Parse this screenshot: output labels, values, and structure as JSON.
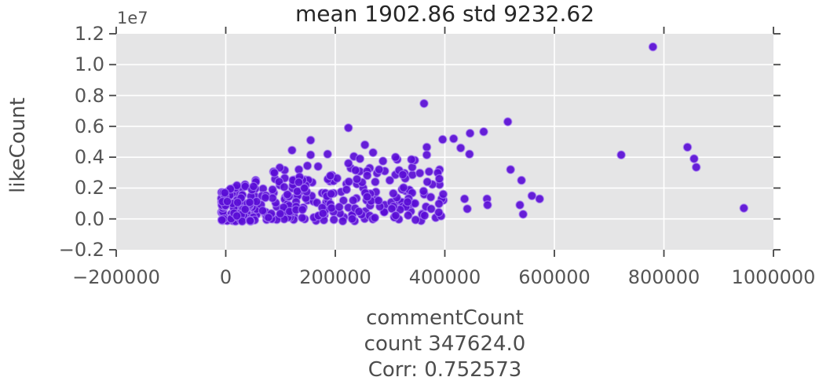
{
  "chart_data": {
    "type": "scatter",
    "title": "mean 1902.86 std 9232.62",
    "ylabel": "likeCount",
    "y_offset_text": "1e7",
    "xlabel_lines": [
      "commentCount",
      "count 347624.0",
      "Corr: 0.752573"
    ],
    "xlim": [
      -200000,
      1000000
    ],
    "ylim": [
      -2000000,
      12000000
    ],
    "grid": true,
    "legend": "none",
    "x_ticks": {
      "values": [
        -200000,
        0,
        200000,
        400000,
        600000,
        800000,
        1000000
      ],
      "labels": [
        "−200000",
        "0",
        "200000",
        "400000",
        "600000",
        "800000",
        "1000000"
      ]
    },
    "y_ticks": {
      "values": [
        12000000,
        10000000,
        8000000,
        6000000,
        4000000,
        2000000,
        0,
        -2000000
      ],
      "labels": [
        "1.2",
        "1.0",
        "0.8",
        "0.6",
        "0.4",
        "0.2",
        "0.0",
        "−0.2"
      ]
    },
    "colors": {
      "point": "#5A0DD6",
      "point_edge": "rgba(170,130,245,0.65)",
      "plot_bg": "#E5E5E6",
      "grid_line": "#FFFFFF",
      "tick": "#444444",
      "title_text": "#262626",
      "label_text": "#4D4D4D",
      "tick_text": "#555555"
    },
    "marker": {
      "radius": 5.2,
      "opacity": 0.92,
      "edge_width": 1.3
    },
    "outlier_points": [
      [
        780000,
        11150000
      ],
      [
        515000,
        6300000
      ],
      [
        362000,
        7480000
      ],
      [
        224000,
        5900000
      ],
      [
        446000,
        5550000
      ],
      [
        471000,
        5650000
      ],
      [
        416000,
        5200000
      ],
      [
        396000,
        5150000
      ],
      [
        367000,
        4650000
      ],
      [
        367000,
        4150000
      ],
      [
        155000,
        5100000
      ],
      [
        121000,
        4450000
      ],
      [
        254000,
        4800000
      ],
      [
        269000,
        4300000
      ],
      [
        722000,
        4150000
      ],
      [
        843000,
        4650000
      ],
      [
        855000,
        3900000
      ],
      [
        859000,
        3350000
      ],
      [
        946000,
        700000
      ],
      [
        520000,
        3200000
      ],
      [
        540000,
        2500000
      ],
      [
        436000,
        1300000
      ],
      [
        441000,
        650000
      ],
      [
        477000,
        1300000
      ],
      [
        478000,
        900000
      ],
      [
        537000,
        900000
      ],
      [
        543000,
        300000
      ],
      [
        559000,
        1500000
      ],
      [
        573000,
        1300000
      ],
      [
        287000,
        3750000
      ],
      [
        313000,
        3850000
      ],
      [
        345000,
        3800000
      ],
      [
        429000,
        4600000
      ],
      [
        445000,
        4200000
      ],
      [
        155000,
        4150000
      ],
      [
        186000,
        4200000
      ],
      [
        234000,
        4050000
      ],
      [
        273000,
        2400000
      ],
      [
        306000,
        1650000
      ],
      [
        332000,
        1100000
      ],
      [
        375000,
        650000
      ],
      [
        390000,
        2600000
      ],
      [
        397000,
        1600000
      ],
      [
        368000,
        2400000
      ],
      [
        224000,
        3600000
      ],
      [
        237000,
        3150000
      ],
      [
        245000,
        3900000
      ],
      [
        310000,
        4000000
      ],
      [
        339000,
        3850000
      ]
    ],
    "dense_cluster": {
      "description": "dense mass of overlapping points, commentCount 0-400000, likeCount mostly 0-3500000, density decreasing with x",
      "count": 320,
      "seed": 42,
      "x_min": -8000,
      "x_max": 400000,
      "x_skew": 1.5,
      "y_base": 2000000,
      "y_slope": 14,
      "y_cap": 3500000,
      "y_skew": 1.6,
      "y_jitter": 200000
    }
  }
}
